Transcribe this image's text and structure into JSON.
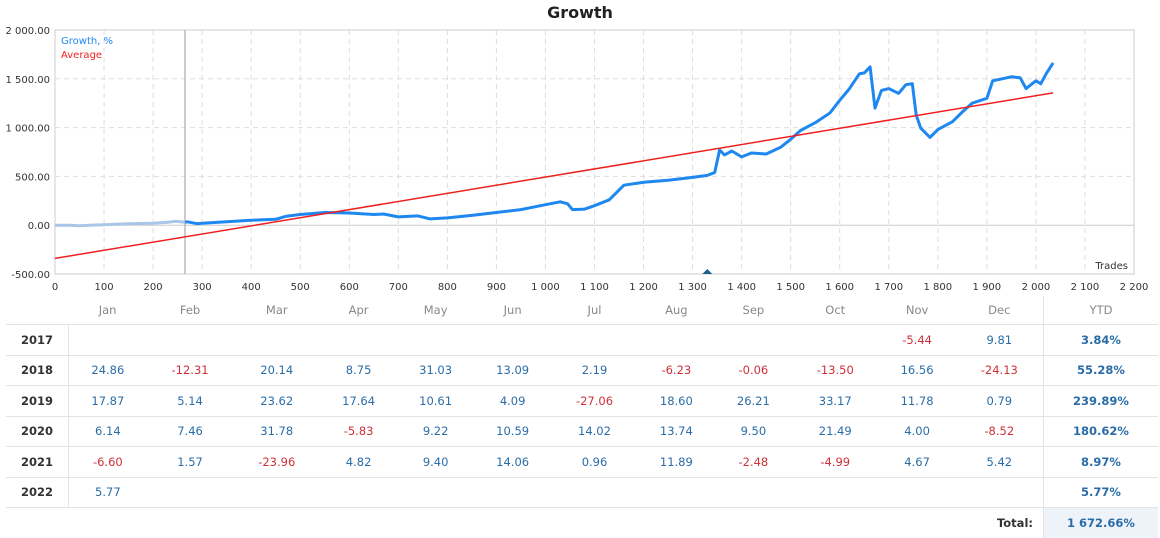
{
  "chart_data": {
    "type": "line",
    "title": "Growth",
    "xlabel": "Trades",
    "ylabel": "",
    "xlim": [
      0,
      2200
    ],
    "ylim": [
      -500,
      2000
    ],
    "xticks": [
      0,
      100,
      200,
      300,
      400,
      500,
      600,
      700,
      800,
      900,
      1000,
      1100,
      1200,
      1300,
      1400,
      1500,
      1600,
      1700,
      1800,
      1900,
      2000,
      2100,
      2200
    ],
    "xtick_labels": [
      "0",
      "100",
      "200",
      "300",
      "400",
      "500",
      "600",
      "700",
      "800",
      "900",
      "1 000",
      "1 100",
      "1 200",
      "1 300",
      "1 400",
      "1 500",
      "1 600",
      "1 700",
      "1 800",
      "1 900",
      "2 000",
      "2 100",
      "2 200"
    ],
    "yticks": [
      -500,
      0,
      500,
      1000,
      1500,
      2000
    ],
    "ytick_labels": [
      "-500.00",
      "0.00",
      "500.00",
      "1 000.00",
      "1 500.00",
      "2 000.00"
    ],
    "grid": true,
    "legend_placement": "top-left",
    "marker_line_trade": 265,
    "triangle_marker_trade": 1330,
    "series": [
      {
        "name": "Growth, %",
        "color": "#1e88f0",
        "faded_color": "#a9c6e6",
        "faded_until": 265,
        "points": [
          [
            0,
            0
          ],
          [
            30,
            0
          ],
          [
            50,
            -5
          ],
          [
            70,
            0
          ],
          [
            100,
            5
          ],
          [
            150,
            15
          ],
          [
            200,
            20
          ],
          [
            230,
            30
          ],
          [
            245,
            40
          ],
          [
            265,
            30
          ],
          [
            270,
            35
          ],
          [
            290,
            15
          ],
          [
            300,
            20
          ],
          [
            350,
            35
          ],
          [
            400,
            50
          ],
          [
            450,
            60
          ],
          [
            470,
            90
          ],
          [
            500,
            110
          ],
          [
            550,
            130
          ],
          [
            600,
            125
          ],
          [
            650,
            110
          ],
          [
            670,
            115
          ],
          [
            700,
            85
          ],
          [
            740,
            95
          ],
          [
            765,
            65
          ],
          [
            800,
            75
          ],
          [
            850,
            100
          ],
          [
            900,
            130
          ],
          [
            950,
            160
          ],
          [
            1000,
            210
          ],
          [
            1030,
            240
          ],
          [
            1045,
            220
          ],
          [
            1055,
            160
          ],
          [
            1080,
            165
          ],
          [
            1100,
            200
          ],
          [
            1130,
            260
          ],
          [
            1160,
            410
          ],
          [
            1200,
            440
          ],
          [
            1250,
            460
          ],
          [
            1300,
            490
          ],
          [
            1330,
            510
          ],
          [
            1345,
            540
          ],
          [
            1355,
            770
          ],
          [
            1365,
            720
          ],
          [
            1380,
            760
          ],
          [
            1400,
            700
          ],
          [
            1420,
            740
          ],
          [
            1450,
            730
          ],
          [
            1480,
            800
          ],
          [
            1500,
            880
          ],
          [
            1520,
            970
          ],
          [
            1550,
            1050
          ],
          [
            1580,
            1150
          ],
          [
            1600,
            1280
          ],
          [
            1620,
            1400
          ],
          [
            1640,
            1550
          ],
          [
            1650,
            1560
          ],
          [
            1662,
            1622
          ],
          [
            1672,
            1200
          ],
          [
            1685,
            1380
          ],
          [
            1700,
            1400
          ],
          [
            1720,
            1350
          ],
          [
            1735,
            1440
          ],
          [
            1748,
            1450
          ],
          [
            1756,
            1128
          ],
          [
            1765,
            995
          ],
          [
            1784,
            900
          ],
          [
            1800,
            980
          ],
          [
            1830,
            1060
          ],
          [
            1850,
            1160
          ],
          [
            1870,
            1250
          ],
          [
            1900,
            1300
          ],
          [
            1912,
            1480
          ],
          [
            1950,
            1520
          ],
          [
            1968,
            1510
          ],
          [
            1980,
            1400
          ],
          [
            2000,
            1480
          ],
          [
            2010,
            1450
          ],
          [
            2022,
            1560
          ],
          [
            2035,
            1663
          ]
        ]
      },
      {
        "name": "Average",
        "color": "#f02020",
        "points": [
          [
            0,
            -340
          ],
          [
            2035,
            1356
          ]
        ]
      }
    ]
  },
  "table": {
    "headers": [
      "",
      "Jan",
      "Feb",
      "Mar",
      "Apr",
      "May",
      "Jun",
      "Jul",
      "Aug",
      "Sep",
      "Oct",
      "Nov",
      "Dec",
      "YTD"
    ],
    "rows": [
      {
        "year": "2017",
        "values": [
          "",
          "",
          "",
          "",
          "",
          "",
          "",
          "",
          "",
          "",
          "-5.44",
          "9.81"
        ],
        "ytd": "3.84%"
      },
      {
        "year": "2018",
        "values": [
          "24.86",
          "-12.31",
          "20.14",
          "8.75",
          "31.03",
          "13.09",
          "2.19",
          "-6.23",
          "-0.06",
          "-13.50",
          "16.56",
          "-24.13"
        ],
        "ytd": "55.28%"
      },
      {
        "year": "2019",
        "values": [
          "17.87",
          "5.14",
          "23.62",
          "17.64",
          "10.61",
          "4.09",
          "-27.06",
          "18.60",
          "26.21",
          "33.17",
          "11.78",
          "0.79"
        ],
        "ytd": "239.89%"
      },
      {
        "year": "2020",
        "values": [
          "6.14",
          "7.46",
          "31.78",
          "-5.83",
          "9.22",
          "10.59",
          "14.02",
          "13.74",
          "9.50",
          "21.49",
          "4.00",
          "-8.52"
        ],
        "ytd": "180.62%"
      },
      {
        "year": "2021",
        "values": [
          "-6.60",
          "1.57",
          "-23.96",
          "4.82",
          "9.40",
          "14.06",
          "0.96",
          "11.89",
          "-2.48",
          "-4.99",
          "4.67",
          "5.42"
        ],
        "ytd": "8.97%"
      },
      {
        "year": "2022",
        "values": [
          "5.77",
          "",
          "",
          "",
          "",
          "",
          "",
          "",
          "",
          "",
          "",
          ""
        ],
        "ytd": "5.77%"
      }
    ],
    "total_label": "Total:",
    "total_value": "1 672.66%"
  }
}
